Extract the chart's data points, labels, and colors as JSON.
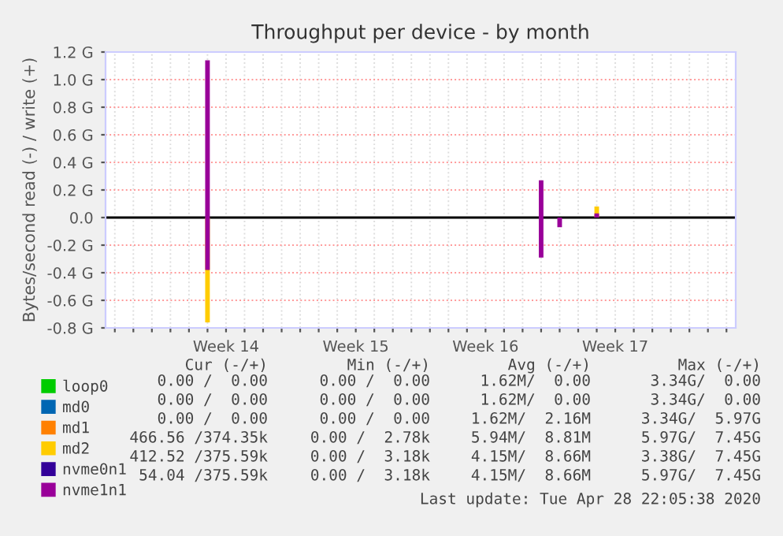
{
  "chart_data": {
    "type": "bar",
    "title": "Throughput per device - by month",
    "ylabel": "Bytes/second read (-) / write (+)",
    "ylim": [
      -0.8,
      1.2
    ],
    "yticks": [
      {
        "value": -0.8,
        "label": "-0.8 G"
      },
      {
        "value": -0.6,
        "label": "-0.6 G"
      },
      {
        "value": -0.4,
        "label": "-0.4 G"
      },
      {
        "value": -0.2,
        "label": "-0.2 G"
      },
      {
        "value": 0,
        "label": "0.0"
      },
      {
        "value": 0.2,
        "label": "0.2 G"
      },
      {
        "value": 0.4,
        "label": "0.4 G"
      },
      {
        "value": 0.6,
        "label": "0.6 G"
      },
      {
        "value": 0.8,
        "label": "0.8 G"
      },
      {
        "value": 1.0,
        "label": "1.0 G"
      },
      {
        "value": 1.2,
        "label": "1.2 G"
      }
    ],
    "grid": true,
    "legend": "bottom",
    "categories": [
      null,
      null,
      null,
      null,
      null,
      null,
      "Week 14",
      null,
      null,
      null,
      null,
      null,
      null,
      "Week 15",
      null,
      null,
      null,
      null,
      null,
      null,
      "Week 16",
      null,
      null,
      null,
      null,
      null,
      null,
      "Week 17",
      null,
      null,
      null,
      null,
      null,
      null
    ],
    "series": [
      {
        "name": "loop0",
        "color": "#00cc00",
        "values": [
          null,
          null,
          null,
          null,
          null,
          null,
          null,
          null,
          null,
          null,
          null,
          null,
          null,
          null,
          null,
          null,
          null,
          null,
          null,
          null,
          null,
          null,
          null,
          null,
          null,
          null,
          null,
          null,
          null,
          null,
          null,
          null,
          null,
          null
        ]
      },
      {
        "name": "md0",
        "color": "#0066b3",
        "values": [
          null,
          null,
          null,
          null,
          null,
          null,
          null,
          null,
          null,
          null,
          null,
          null,
          null,
          null,
          null,
          null,
          null,
          null,
          null,
          null,
          null,
          null,
          null,
          null,
          null,
          null,
          null,
          null,
          null,
          null,
          null,
          null,
          null,
          null
        ]
      },
      {
        "name": "md1",
        "color": "#ff8000",
        "values": [
          null,
          null,
          null,
          null,
          null,
          null,
          null,
          null,
          null,
          null,
          null,
          null,
          null,
          null,
          null,
          null,
          null,
          null,
          null,
          null,
          null,
          null,
          null,
          null,
          null,
          null,
          null,
          null,
          null,
          null,
          null,
          null,
          null,
          null
        ]
      },
      {
        "name": "md2",
        "color": "#ffcc00",
        "values": [
          null,
          null,
          null,
          null,
          null,
          null,
          null,
          null,
          null,
          null,
          null,
          null,
          null,
          null,
          null,
          null,
          null,
          null,
          null,
          null,
          null,
          null,
          null,
          null,
          null,
          null,
          0.08,
          null,
          null,
          null,
          null,
          null,
          null,
          null
        ]
      },
      {
        "color": "#ffcc00",
        "values": [
          null,
          null,
          null,
          null,
          null,
          -0.76,
          null,
          null,
          null,
          null,
          null,
          null,
          null,
          null,
          null,
          null,
          null,
          null,
          null,
          null,
          null,
          null,
          null,
          null,
          null,
          null,
          null,
          null,
          null,
          null,
          null,
          null,
          null,
          null
        ]
      },
      {
        "name": "nvme0n1",
        "color": "#330099",
        "values": [
          null,
          null,
          null,
          null,
          null,
          null,
          null,
          null,
          null,
          null,
          null,
          null,
          null,
          null,
          null,
          null,
          null,
          null,
          null,
          null,
          null,
          null,
          null,
          null,
          null,
          null,
          null,
          null,
          null,
          null,
          null,
          null,
          null,
          null
        ]
      },
      {
        "name": "nvme1n1",
        "color": "#990099",
        "values": [
          null,
          null,
          null,
          null,
          null,
          1.14,
          null,
          null,
          null,
          null,
          null,
          null,
          null,
          null,
          null,
          null,
          null,
          null,
          null,
          null,
          null,
          null,
          null,
          0.27,
          null,
          null,
          0.03,
          null,
          null,
          null,
          null,
          null,
          null,
          null
        ]
      },
      {
        "color": "#990099",
        "values": [
          null,
          null,
          null,
          null,
          null,
          -0.38,
          null,
          null,
          null,
          null,
          null,
          null,
          null,
          null,
          null,
          null,
          null,
          null,
          null,
          null,
          null,
          null,
          null,
          -0.29,
          -0.07,
          null,
          null,
          null,
          null,
          null,
          null,
          null,
          null,
          null
        ]
      }
    ],
    "annotations": [
      "Cur (-/+)",
      "Min (-/+)",
      "Avg (-/+)",
      "Max (-/+)",
      "0.00 /  0.00",
      "0.00 /  0.00",
      "1.62M/  0.00",
      "3.34G/  0.00",
      "0.00 /  0.00",
      "0.00 /  0.00",
      "1.62M/  0.00",
      "3.34G/  0.00",
      "0.00 /  0.00",
      "0.00 /  0.00",
      "1.62M/  2.16M",
      "3.34G/  5.97G",
      "466.56 /374.35k",
      "0.00 /  2.78k",
      "5.94M/  8.81M",
      "5.97G/  7.45G",
      "412.52 /375.59k",
      "0.00 /  3.18k",
      "4.15M/  8.66M",
      "3.38G/  7.45G",
      "54.04 /375.59k",
      "0.00 /  3.18k",
      "4.15M/  8.66M",
      "5.97G/  7.45G",
      "Last update: Tue Apr 28 22:05:38 2020"
    ]
  }
}
